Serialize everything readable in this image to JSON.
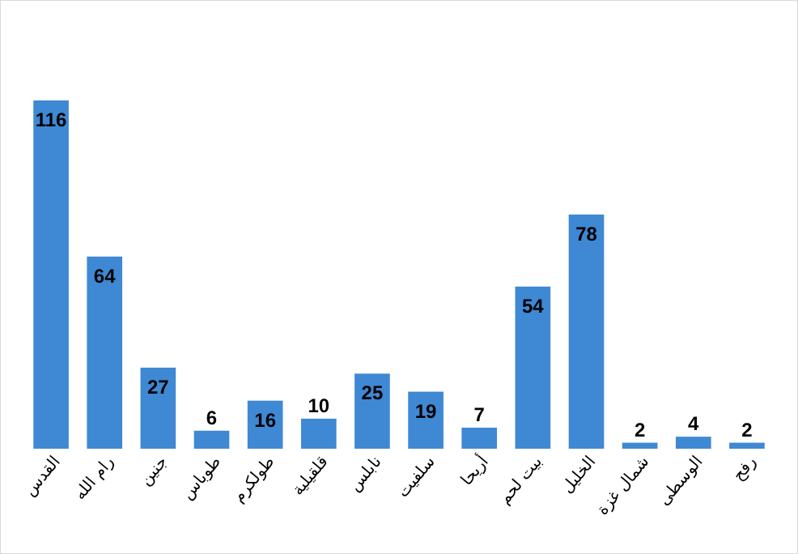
{
  "chart_data": {
    "type": "bar",
    "categories": [
      "القدس",
      "رام الله",
      "جنين",
      "طوباس",
      "طولكرم",
      "قلقيلية",
      "نابلس",
      "سلفيت",
      "أريحا",
      "بيت لحم",
      "الخليل",
      "شمال غزة",
      "الوسطى",
      "رفح"
    ],
    "values": [
      116,
      64,
      27,
      6,
      16,
      10,
      25,
      19,
      7,
      54,
      78,
      2,
      4,
      2
    ],
    "color": "#3f88d4",
    "data_labels": true
  }
}
